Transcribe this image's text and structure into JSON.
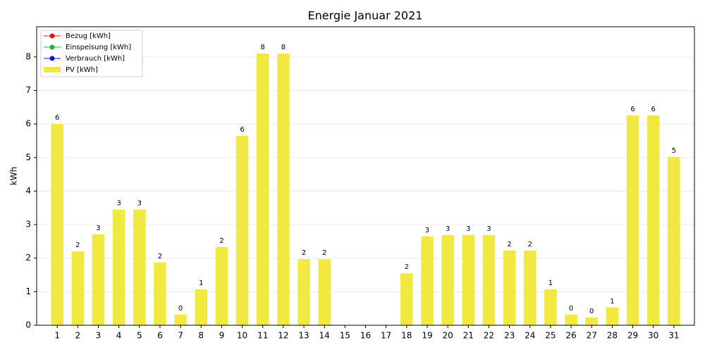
{
  "chart_data": {
    "type": "bar",
    "title": "Energie Januar 2021",
    "ylabel": "kWh",
    "categories": [
      "1",
      "2",
      "3",
      "4",
      "5",
      "6",
      "7",
      "8",
      "9",
      "10",
      "11",
      "12",
      "13",
      "14",
      "15",
      "16",
      "17",
      "18",
      "19",
      "20",
      "21",
      "22",
      "23",
      "24",
      "25",
      "26",
      "27",
      "28",
      "29",
      "30",
      "31"
    ],
    "series": [
      {
        "name": "Bezug [kWh]",
        "color": "#ee1111",
        "kind": "line",
        "values": [
          null,
          null,
          null,
          null,
          null,
          null,
          null,
          null,
          null,
          null,
          null,
          null,
          null,
          null,
          null,
          null,
          null,
          null,
          null,
          null,
          null,
          null,
          null,
          null,
          null,
          null,
          null,
          null,
          null,
          null,
          null
        ]
      },
      {
        "name": "Einspeisung [kWh]",
        "color": "#11bb33",
        "kind": "line",
        "values": [
          null,
          null,
          null,
          null,
          null,
          null,
          null,
          null,
          null,
          null,
          null,
          null,
          null,
          null,
          null,
          null,
          null,
          null,
          null,
          null,
          null,
          null,
          null,
          null,
          null,
          null,
          null,
          null,
          null,
          null,
          null
        ]
      },
      {
        "name": "Verbrauch [kWh]",
        "color": "#1111cc",
        "kind": "line",
        "values": [
          null,
          null,
          null,
          null,
          null,
          null,
          null,
          null,
          null,
          null,
          null,
          null,
          null,
          null,
          null,
          null,
          null,
          null,
          null,
          null,
          null,
          null,
          null,
          null,
          null,
          null,
          null,
          null,
          null,
          null,
          null
        ]
      },
      {
        "name": "PV [kWh]",
        "color": "#f2e940",
        "kind": "bar",
        "values": [
          6.0,
          2.2,
          2.71,
          3.45,
          3.45,
          1.87,
          0.32,
          1.07,
          2.33,
          5.65,
          8.1,
          8.1,
          1.97,
          1.97,
          0,
          0,
          0,
          1.55,
          2.65,
          2.69,
          2.69,
          2.69,
          2.23,
          2.23,
          1.07,
          0.32,
          0.23,
          0.53,
          6.26,
          6.26,
          5.02
        ],
        "value_labels": [
          "6",
          "2",
          "3",
          "3",
          "3",
          "2",
          "0",
          "1",
          "2",
          "6",
          "8",
          "8",
          "2",
          "2",
          null,
          null,
          null,
          "2",
          "3",
          "3",
          "3",
          "3",
          "2",
          "2",
          "1",
          "0",
          "0",
          "1",
          "6",
          "6",
          "5"
        ]
      }
    ],
    "ylim": [
      0,
      8.9
    ],
    "yticks": [
      0,
      1,
      2,
      3,
      4,
      5,
      6,
      7,
      8
    ],
    "grid": true,
    "legend": "upper left"
  }
}
